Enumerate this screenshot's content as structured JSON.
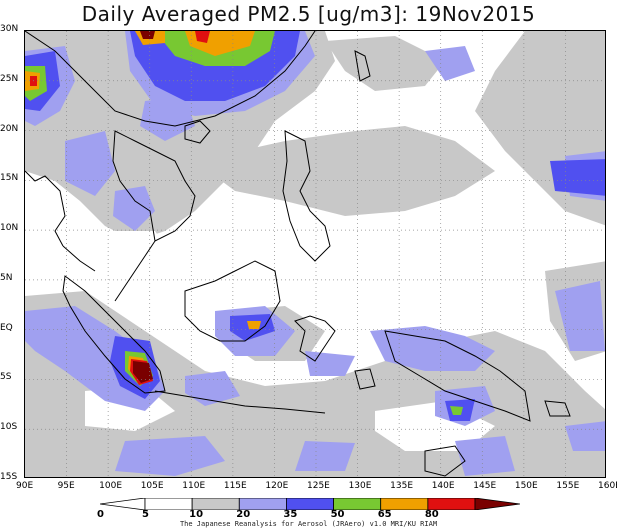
{
  "title": "Daily Averaged PM2.5 [ug/m3]: 19Nov2015",
  "credit": "The Japanese Reanalysis for Aerosol (JRAero) v1.0 MRI/KU RIAM",
  "map": {
    "lon_range": [
      90,
      160
    ],
    "lat_range": [
      -15,
      30
    ],
    "lon_ticks": [
      "90E",
      "95E",
      "100E",
      "105E",
      "110E",
      "115E",
      "120E",
      "125E",
      "130E",
      "135E",
      "140E",
      "145E",
      "150E",
      "155E",
      "160E"
    ],
    "lat_ticks": [
      "30N",
      "25N",
      "20N",
      "15N",
      "10N",
      "5N",
      "EQ",
      "5S",
      "10S",
      "15S"
    ],
    "gridlines": "dotted",
    "region": "Southeast Asia / Maritime Continent"
  },
  "colorbar": {
    "levels": [
      "0",
      "5",
      "10",
      "20",
      "35",
      "50",
      "65",
      "80"
    ],
    "colors": [
      "#ffffff",
      "#ffffff",
      "#c8c8c8",
      "#a0a0f0",
      "#5050f0",
      "#78c832",
      "#f0a000",
      "#e01010",
      "#7a0000"
    ]
  }
}
